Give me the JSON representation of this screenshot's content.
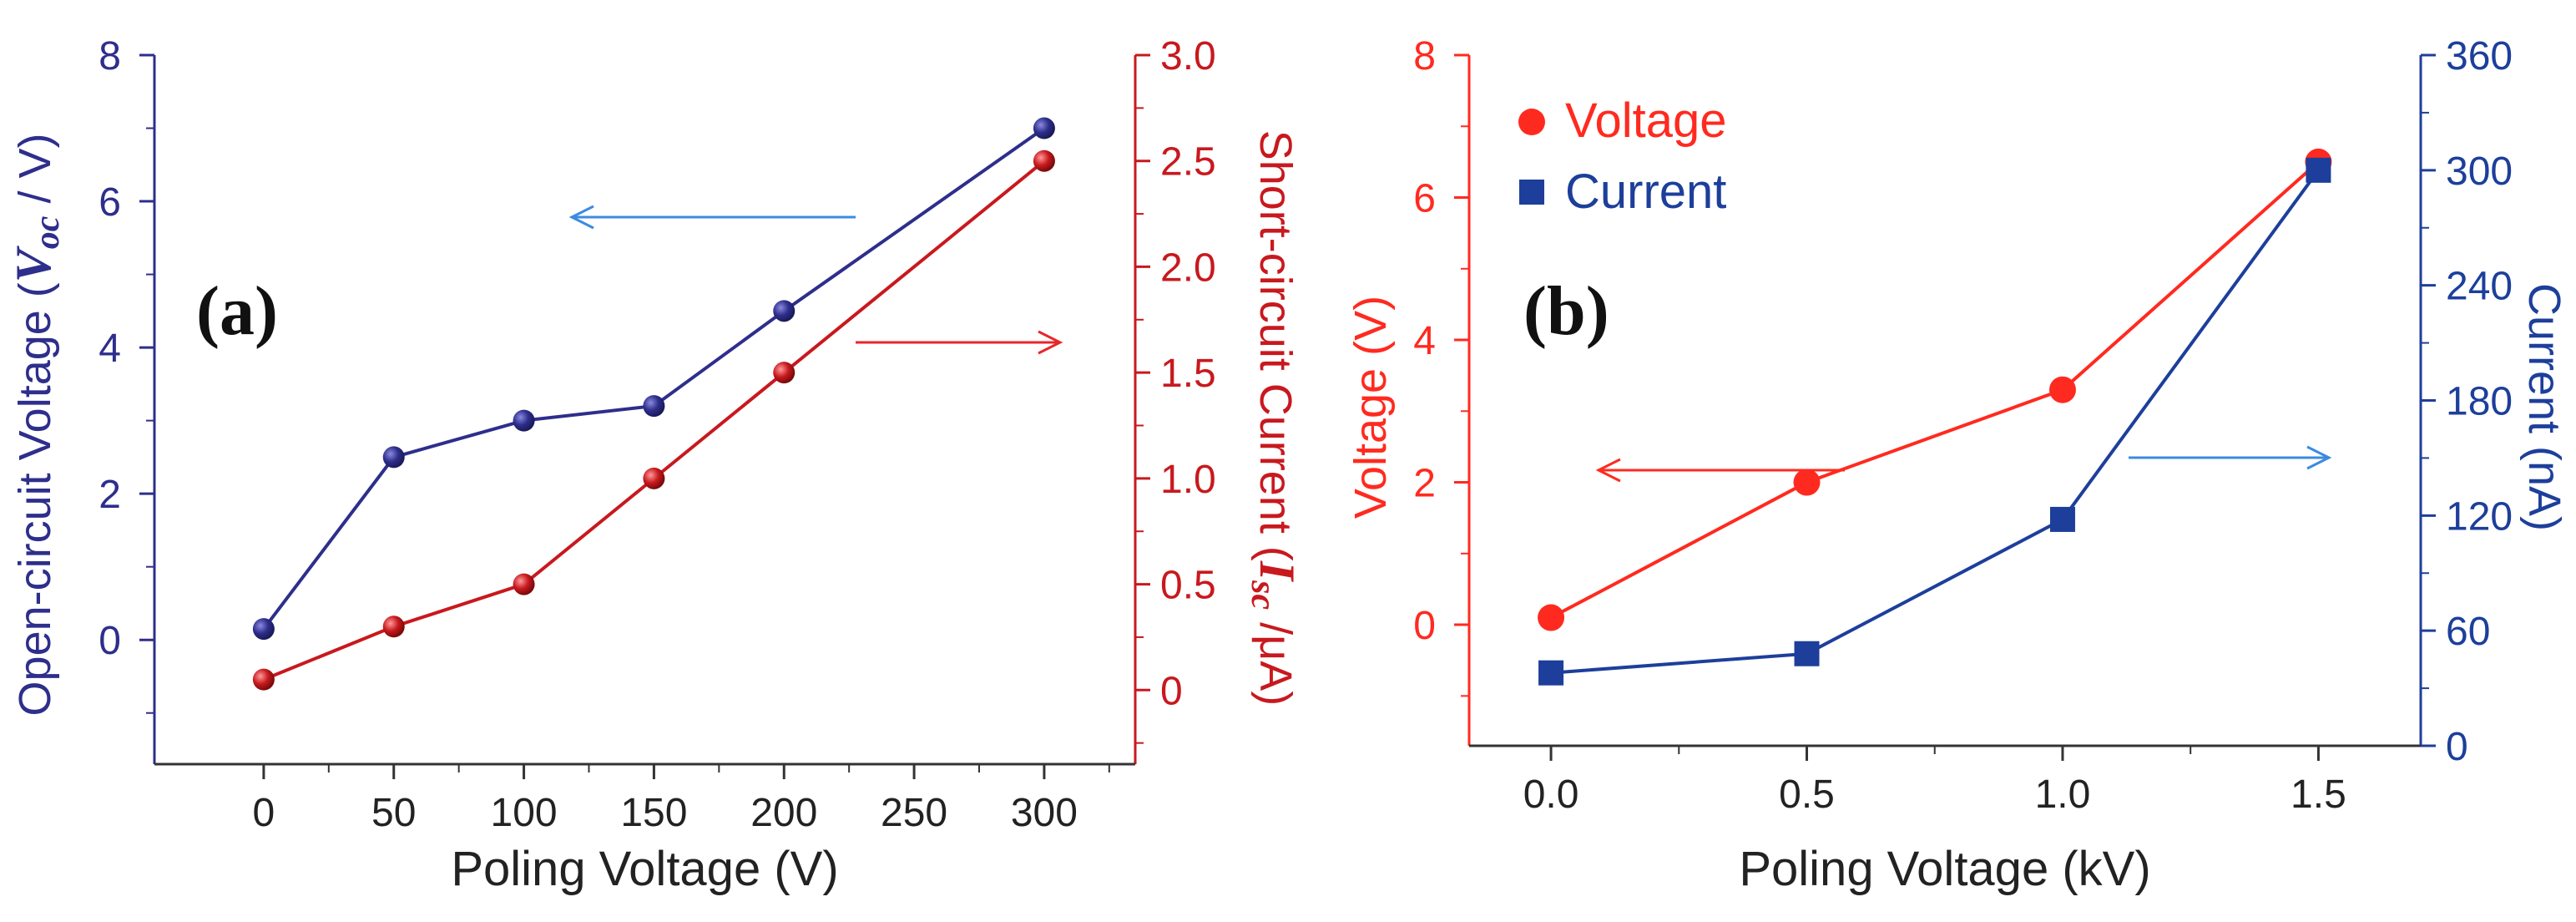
{
  "chart_data": [
    {
      "type": "line",
      "panel_label": "(a)",
      "xlabel": "Poling Voltage (V)",
      "x_ticks": [
        "0",
        "50",
        "100",
        "150",
        "200",
        "250",
        "300"
      ],
      "xlim": [
        -42,
        335
      ],
      "y_left": {
        "label_prefix": "Open-circuit Voltage (",
        "label_symbol": "V",
        "label_sub": "oc",
        "label_suffix": " / V)",
        "color": "#2e2e8c",
        "ticks": [
          "0",
          "2",
          "4",
          "6",
          "8"
        ],
        "ylim": [
          -1.7,
          8
        ]
      },
      "y_right": {
        "label_prefix": "Short-circuit Current (",
        "label_symbol": "I",
        "label_sub": "sc",
        "label_suffix": " /μA)",
        "color": "#c8191e",
        "ticks": [
          "0",
          "0.5",
          "1.0",
          "1.5",
          "2.0",
          "2.5",
          "3.0"
        ],
        "ylim": [
          -0.35,
          3.0
        ]
      },
      "series": [
        {
          "name": "Open-circuit Voltage",
          "axis": "left",
          "color": "#2e2e8c",
          "x": [
            0,
            50,
            100,
            150,
            200,
            300
          ],
          "y": [
            0.15,
            2.5,
            3.0,
            3.2,
            4.5,
            7.0
          ]
        },
        {
          "name": "Short-circuit Current",
          "axis": "right",
          "color": "#c8191e",
          "x": [
            0,
            50,
            100,
            150,
            200,
            300
          ],
          "y": [
            0.05,
            0.3,
            0.5,
            1.0,
            1.5,
            2.5
          ]
        }
      ],
      "annotations": [
        {
          "type": "arrow",
          "direction": "left",
          "meaning": "left axis",
          "color": "#3b8be0"
        },
        {
          "type": "arrow",
          "direction": "right",
          "meaning": "right axis",
          "color": "#e8262b"
        }
      ]
    },
    {
      "type": "line",
      "panel_label": "(b)",
      "xlabel": "Poling Voltage (kV)",
      "x_ticks": [
        "0.0",
        "0.5",
        "1.0",
        "1.5"
      ],
      "xlim": [
        -0.16,
        1.7
      ],
      "y_left": {
        "label": "Voltage (V)",
        "color": "#ff2a1f",
        "ticks": [
          "0",
          "2",
          "4",
          "6",
          "8"
        ],
        "ylim": [
          -1.7,
          8
        ]
      },
      "y_right": {
        "label": "Current (nA)",
        "color": "#1d3f9b",
        "ticks": [
          "0",
          "60",
          "120",
          "180",
          "240",
          "300",
          "360"
        ],
        "ylim": [
          0,
          360
        ]
      },
      "legend": {
        "position": "top-left",
        "entries": [
          {
            "label": "Voltage",
            "marker": "circle",
            "color": "#ff2a1f"
          },
          {
            "label": "Current",
            "marker": "square",
            "color": "#1d3f9b"
          }
        ]
      },
      "series": [
        {
          "name": "Voltage",
          "axis": "left",
          "color": "#ff2a1f",
          "x": [
            0.0,
            0.5,
            1.0,
            1.5
          ],
          "y": [
            0.1,
            2.0,
            3.3,
            6.5
          ]
        },
        {
          "name": "Current",
          "axis": "right",
          "color": "#1d3f9b",
          "x": [
            0.0,
            0.5,
            1.0,
            1.5
          ],
          "y": [
            38,
            48,
            118,
            300
          ]
        }
      ],
      "annotations": [
        {
          "type": "arrow",
          "direction": "left",
          "meaning": "left axis",
          "color": "#ff2a1f"
        },
        {
          "type": "arrow",
          "direction": "right",
          "meaning": "right axis",
          "color": "#3b8be0"
        }
      ]
    }
  ]
}
